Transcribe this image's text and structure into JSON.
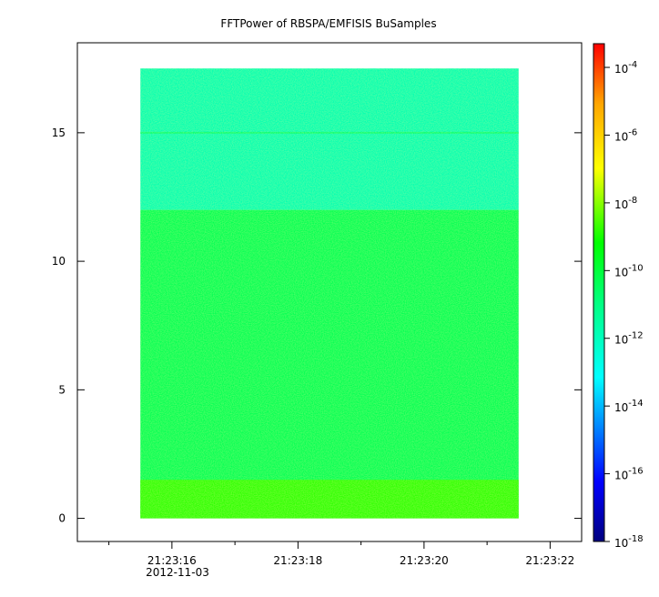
{
  "chart_data": {
    "type": "heatmap",
    "title": "FFTPower of RBSPA/EMFISIS  BuSamples",
    "xlabel": "",
    "ylabel": "",
    "x_ticks": [
      "21:23:16",
      "21:23:18",
      "21:23:20",
      "21:23:22"
    ],
    "x_date_label": "2012-11-03",
    "xlim_seconds": [
      14.5,
      22.5
    ],
    "data_x_range_seconds": [
      15.5,
      21.5
    ],
    "y_ticks": [
      "0",
      "5",
      "10",
      "15"
    ],
    "ylim": [
      -0.9,
      18.5
    ],
    "data_y_range": [
      0,
      17.5
    ],
    "colorbar": {
      "scale": "log",
      "range_exp": [
        -18,
        -3.3
      ],
      "ticks": [
        {
          "base": "10",
          "exp": "-4"
        },
        {
          "base": "10",
          "exp": "-6"
        },
        {
          "base": "10",
          "exp": "-8"
        },
        {
          "base": "10",
          "exp": "-10"
        },
        {
          "base": "10",
          "exp": "-12"
        },
        {
          "base": "10",
          "exp": "-14"
        },
        {
          "base": "10",
          "exp": "-16"
        },
        {
          "base": "10",
          "exp": "-18"
        }
      ]
    },
    "regions": [
      {
        "y_range": [
          12,
          17.5
        ],
        "level_exp": -11.8,
        "note": "cyan-green"
      },
      {
        "y_range": [
          0,
          12
        ],
        "level_exp": -10.3,
        "note": "green"
      },
      {
        "y_range": [
          0,
          1.5
        ],
        "level_exp": -8.8,
        "note": "yellow-green"
      }
    ],
    "lines": [
      {
        "y": 15.0,
        "level_exp": -10.8
      }
    ],
    "grid": false,
    "colors": {
      "low": "#00007f",
      "high": "#ff0000",
      "background": "#ffffff"
    }
  }
}
